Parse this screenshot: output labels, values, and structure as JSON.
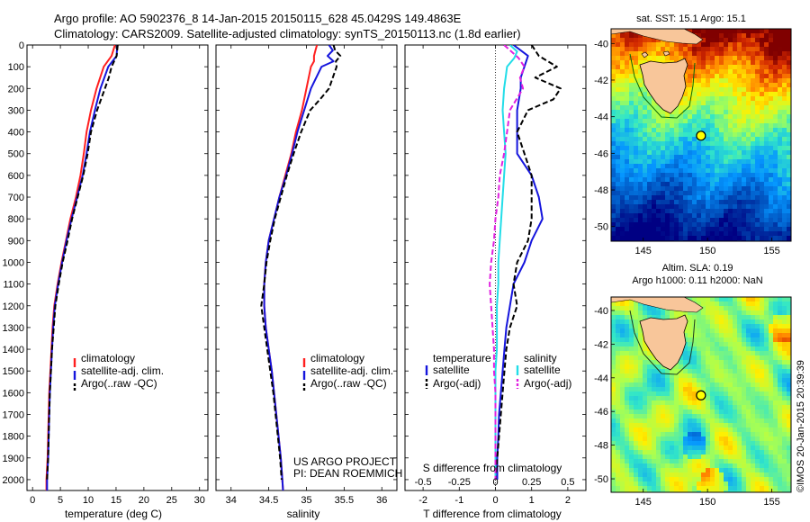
{
  "header": {
    "title_line1": "Argo profile: AO 5902376_8 14-Jan-2015 20150115_628 45.0429S 149.4863E",
    "title_line2": "Climatology: CARS2009. Satellite-adjusted climatology: synTS_20150113.nc (1.8d earlier)"
  },
  "colors": {
    "climatology": "#ff1f1f",
    "satellite": "#1515dd",
    "argo": "#000000",
    "salinity_satellite": "#22dde8",
    "salinity_argo": "#e020e0",
    "float_marker": "#ffff00"
  },
  "chart_data": [
    {
      "type": "line",
      "panel": "temperature",
      "xlabel": "temperature (deg C)",
      "ylabel": "",
      "xlim": [
        -1,
        31.5
      ],
      "ylim": [
        2050,
        0
      ],
      "xticks": [
        0,
        5,
        10,
        15,
        20,
        25,
        30
      ],
      "yticks": [
        0,
        100,
        200,
        300,
        400,
        500,
        600,
        700,
        800,
        900,
        1000,
        1100,
        1200,
        1300,
        1400,
        1500,
        1600,
        1700,
        1800,
        1900,
        2000
      ],
      "legend": [
        "climatology",
        "satellite-adj. clim.",
        "Argo(..raw -QC)"
      ],
      "legend_position": "lower-center",
      "series": [
        {
          "name": "climatology",
          "style": "solid",
          "color_key": "climatology",
          "depth": [
            0,
            50,
            100,
            200,
            300,
            400,
            500,
            600,
            700,
            800,
            900,
            1000,
            1100,
            1200,
            1300,
            1400,
            1500,
            1600,
            1700,
            1800,
            1900,
            2000,
            2050
          ],
          "values": [
            14.8,
            14.2,
            12.8,
            11.5,
            10.5,
            9.7,
            9.2,
            8.6,
            7.8,
            6.8,
            6.0,
            5.2,
            4.5,
            3.9,
            3.6,
            3.4,
            3.2,
            3.0,
            2.9,
            2.8,
            2.7,
            2.5,
            2.5
          ]
        },
        {
          "name": "satellite-adj. clim.",
          "style": "solid",
          "color_key": "satellite",
          "depth": [
            0,
            50,
            100,
            200,
            300,
            400,
            500,
            600,
            700,
            800,
            900,
            1000,
            1100,
            1200,
            1300,
            1400,
            1500,
            1600,
            1700,
            1800,
            1900,
            2000,
            2050
          ],
          "values": [
            15.2,
            15.1,
            13.6,
            12.2,
            11.2,
            10.3,
            9.7,
            9.0,
            8.0,
            7.0,
            6.1,
            5.3,
            4.6,
            4.0,
            3.7,
            3.5,
            3.3,
            3.1,
            3.0,
            2.9,
            2.8,
            2.6,
            2.6
          ]
        },
        {
          "name": "Argo(..raw -QC)",
          "style": "dashed",
          "color_key": "argo",
          "depth": [
            0,
            50,
            100,
            150,
            200,
            300,
            400,
            500,
            600,
            700,
            800,
            900,
            1000,
            1100,
            1200,
            1300,
            1400,
            1500,
            1600,
            1700,
            1800,
            1900,
            2000
          ],
          "values": [
            15.3,
            15.1,
            14.2,
            13.7,
            13.0,
            11.6,
            10.5,
            9.9,
            9.1,
            8.1,
            7.1,
            6.3,
            5.4,
            4.7,
            4.1,
            3.8,
            3.5,
            3.3,
            3.1,
            3.0,
            2.9,
            2.8,
            2.6
          ]
        }
      ]
    },
    {
      "type": "line",
      "panel": "salinity",
      "xlabel": "salinity",
      "xlim": [
        33.8,
        36.2
      ],
      "ylim": [
        2050,
        0
      ],
      "xticks": [
        34,
        34.5,
        35,
        35.5,
        36
      ],
      "legend": [
        "climatology",
        "satellite-adj. clim.",
        "Argo(..raw -QC)"
      ],
      "legend_position": "lower-center",
      "annotation": [
        "US ARGO PROJECT",
        "PI: DEAN ROEMMICH"
      ],
      "series": [
        {
          "name": "climatology",
          "style": "solid",
          "color_key": "climatology",
          "depth": [
            0,
            25,
            50,
            75,
            100,
            200,
            300,
            400,
            500,
            600,
            700,
            800,
            900,
            1000,
            1100,
            1200,
            1300,
            1400,
            1500,
            1600,
            1700,
            1800,
            1900,
            2000,
            2050
          ],
          "values": [
            35.14,
            35.12,
            35.1,
            35.1,
            35.06,
            35.0,
            34.94,
            34.86,
            34.8,
            34.72,
            34.64,
            34.57,
            34.5,
            34.46,
            34.44,
            34.44,
            34.46,
            34.5,
            34.54,
            34.57,
            34.6,
            34.63,
            34.66,
            34.68,
            34.69
          ]
        },
        {
          "name": "satellite-adj. clim.",
          "style": "solid",
          "color_key": "satellite",
          "depth": [
            0,
            25,
            50,
            75,
            100,
            200,
            300,
            400,
            500,
            600,
            700,
            800,
            900,
            1000,
            1100,
            1200,
            1300,
            1400,
            1500,
            1600,
            1700,
            1800,
            1900,
            2000,
            2050
          ],
          "values": [
            35.3,
            35.35,
            35.28,
            35.36,
            35.2,
            35.06,
            34.97,
            34.88,
            34.81,
            34.73,
            34.64,
            34.57,
            34.5,
            34.46,
            34.44,
            34.44,
            34.46,
            34.5,
            34.54,
            34.57,
            34.6,
            34.63,
            34.66,
            34.68,
            34.69
          ]
        },
        {
          "name": "Argo(..raw -QC)",
          "style": "dashed",
          "color_key": "argo",
          "depth": [
            0,
            25,
            50,
            75,
            100,
            150,
            200,
            250,
            300,
            400,
            500,
            600,
            700,
            800,
            900,
            1000,
            1100,
            1200,
            1300,
            1400,
            1500,
            1600,
            1700,
            1800,
            1900,
            2000
          ],
          "values": [
            35.36,
            35.38,
            35.45,
            35.39,
            35.4,
            35.35,
            35.3,
            35.18,
            35.05,
            34.93,
            34.83,
            34.74,
            34.66,
            34.58,
            34.52,
            34.47,
            34.44,
            34.4,
            34.44,
            34.48,
            34.52,
            34.56,
            34.59,
            34.62,
            34.65,
            34.67
          ]
        }
      ]
    },
    {
      "type": "line",
      "panel": "difference",
      "xlabel": "T difference from climatology",
      "xlabel_top": "S difference from climatology",
      "xlim": [
        -2.5,
        2.5
      ],
      "ylim": [
        2050,
        0
      ],
      "xticks": [
        -2,
        -1,
        0,
        1,
        2
      ],
      "xticks_top": [
        -0.5,
        -0.25,
        0,
        0.25,
        0.5
      ],
      "legend": [
        "temperature",
        "satellite",
        "Argo(-adj)",
        "salinity",
        "satellite",
        "Argo(-adj)"
      ],
      "legend_position": "lower-center",
      "series": [
        {
          "name": "temperature satellite",
          "style": "solid",
          "color_key": "satellite",
          "depth": [
            0,
            50,
            100,
            150,
            200,
            300,
            400,
            500,
            600,
            700,
            800,
            900,
            1000,
            1100,
            1200,
            1300,
            1400,
            1500,
            1600,
            1700,
            1800,
            1900,
            2000
          ],
          "values": [
            0.5,
            0.9,
            0.8,
            0.7,
            0.7,
            0.6,
            0.6,
            0.6,
            1.0,
            1.2,
            1.3,
            1.0,
            0.8,
            0.5,
            0.4,
            0.3,
            0.25,
            0.2,
            0.15,
            0.1,
            0.08,
            0.05,
            0.05
          ]
        },
        {
          "name": "temperature Argo(-adj)",
          "style": "dashed",
          "color_key": "argo",
          "depth": [
            0,
            50,
            100,
            150,
            200,
            250,
            300,
            400,
            500,
            600,
            700,
            800,
            900,
            1000,
            1100,
            1200,
            1300,
            1400,
            1500,
            1600,
            1700,
            1800,
            1900,
            2000
          ],
          "values": [
            1.0,
            1.2,
            1.7,
            1.1,
            1.8,
            1.6,
            0.9,
            0.6,
            0.8,
            1.0,
            1.0,
            1.0,
            0.9,
            0.6,
            0.5,
            0.6,
            0.4,
            0.3,
            0.25,
            0.2,
            0.15,
            0.1,
            0.05,
            0.0
          ]
        },
        {
          "name": "salinity satellite",
          "style": "solid",
          "color_key": "salinity_satellite",
          "depth": [
            0,
            30,
            60,
            100,
            150,
            200,
            300,
            400,
            500,
            600,
            700,
            800,
            900,
            1000,
            1100,
            1200,
            1300,
            1400,
            1500,
            1600,
            1700,
            1800,
            1900,
            2000
          ],
          "values": [
            0.1,
            0.15,
            0.13,
            0.08,
            0.07,
            0.06,
            0.05,
            0.06,
            0.07,
            0.06,
            0.05,
            0.04,
            0.03,
            0.02,
            0.02,
            0.01,
            0.01,
            0.01,
            0.0,
            0.0,
            0.0,
            0.0,
            0.0,
            0.0
          ]
        },
        {
          "name": "salinity Argo(-adj)",
          "style": "dashed",
          "color_key": "salinity_argo",
          "depth": [
            0,
            30,
            60,
            100,
            150,
            200,
            300,
            400,
            500,
            600,
            700,
            800,
            900,
            1000,
            1100,
            1200,
            1300,
            1400,
            1500,
            1600,
            1700,
            1800,
            1900,
            2000
          ],
          "values": [
            0.06,
            0.11,
            0.16,
            0.2,
            0.17,
            0.19,
            0.1,
            0.08,
            0.06,
            0.03,
            0.02,
            0.0,
            -0.01,
            -0.03,
            -0.04,
            -0.03,
            -0.02,
            -0.01,
            -0.01,
            0.0,
            0.0,
            0.0,
            0.0,
            0.0
          ]
        }
      ]
    },
    {
      "type": "heatmap",
      "panel": "sst_map",
      "title": "sat. SST: 15.1  Argo: 15.1",
      "xlim": [
        142.5,
        156.5
      ],
      "ylim": [
        -50.8,
        -39.2
      ],
      "xticks": [
        145,
        150,
        155
      ],
      "yticks": [
        -40,
        -42,
        -44,
        -46,
        -48,
        -50
      ],
      "xticklabels": [
        "145",
        "150",
        "155"
      ],
      "yticklabels": [
        "-40",
        "-42",
        "-44",
        "-46",
        "-48",
        "-50"
      ],
      "field": "sea surface temperature (warm in north, cold in south)",
      "float_position": {
        "lon": 149.49,
        "lat": -45.04
      }
    },
    {
      "type": "heatmap",
      "panel": "sla_map",
      "title_line1": "Altim. SLA: 0.19",
      "title_line2": "Argo h1000: 0.11 h2000: NaN",
      "xlim": [
        142.5,
        156.5
      ],
      "ylim": [
        -50.8,
        -39.2
      ],
      "xticks": [
        145,
        150,
        155
      ],
      "yticks": [
        -40,
        -42,
        -44,
        -46,
        -48,
        -50
      ],
      "xticklabels": [
        "145",
        "150",
        "155"
      ],
      "yticklabels": [
        "-40",
        "-42",
        "-44",
        "-46",
        "-48",
        "-50"
      ],
      "field": "sea level anomaly",
      "float_position": {
        "lon": 149.49,
        "lat": -45.04
      },
      "side_label": "©IMOS 20-Jan-2015 20:39:39"
    }
  ]
}
